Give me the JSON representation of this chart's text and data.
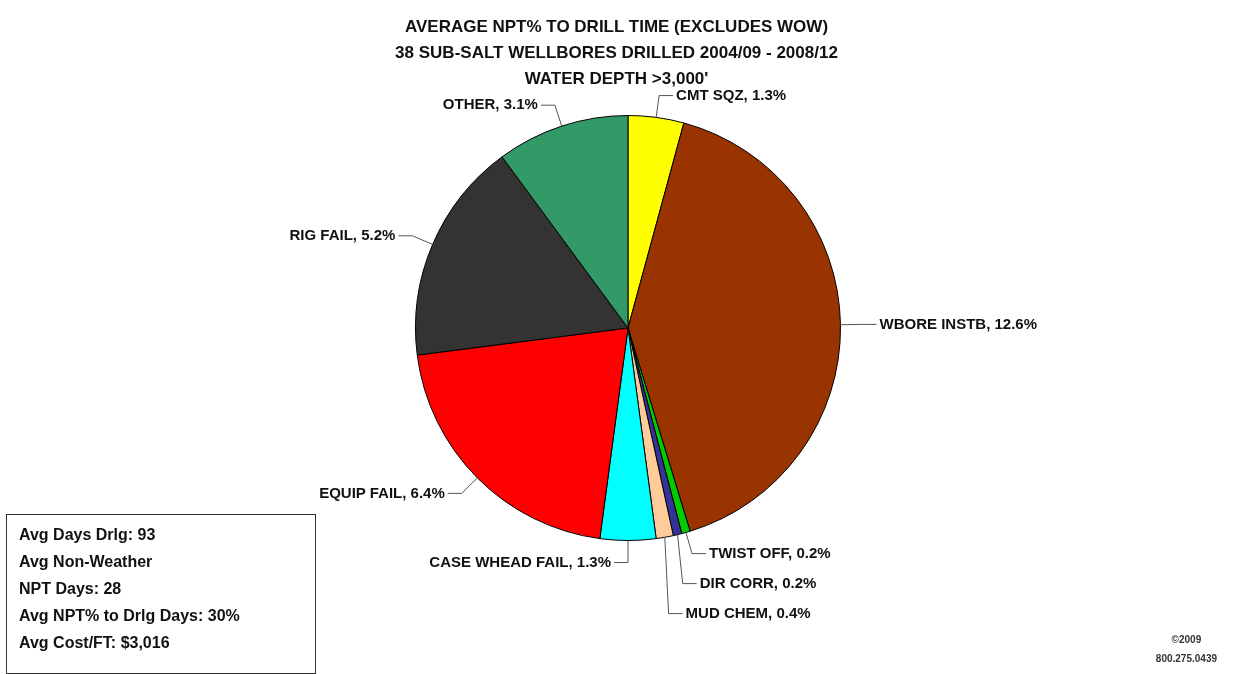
{
  "chart_data": {
    "type": "pie",
    "title": "AVERAGE NPT% TO DRILL TIME (EXCLUDES WOW)",
    "subtitle": "38 SUB-SALT WELLBORES DRILLED 2004/09 - 2008/12\nWATER DEPTH >3,000'",
    "categories": [
      "CMT SQZ",
      "WBORE INSTB",
      "TWIST OFF",
      "DIR CORR",
      "MUD CHEM",
      "CASE WHEAD FAIL",
      "EQUIP FAIL",
      "RIG FAIL",
      "OTHER"
    ],
    "values": [
      1.3,
      12.6,
      0.2,
      0.2,
      0.4,
      1.3,
      6.4,
      5.2,
      3.1
    ],
    "value_labels": [
      "1.3%",
      "12.6%",
      "0.2%",
      "0.2%",
      "0.4%",
      "1.3%",
      "6.4%",
      "5.2%",
      "3.1%"
    ],
    "colors": [
      "#ffff00",
      "#993300",
      "#00cc00",
      "#333399",
      "#ffcc99",
      "#00ffff",
      "#ff0000",
      "#333333",
      "#339966"
    ],
    "legend": false,
    "annotations": [
      "Avg Days Drlg: 93",
      "Avg Non-Weather",
      "NPT Days: 28",
      "Avg NPT% to Drlg Days: 30%",
      "Avg Cost/FT:  $3,016",
      "©2009",
      "800.275.0439"
    ]
  }
}
